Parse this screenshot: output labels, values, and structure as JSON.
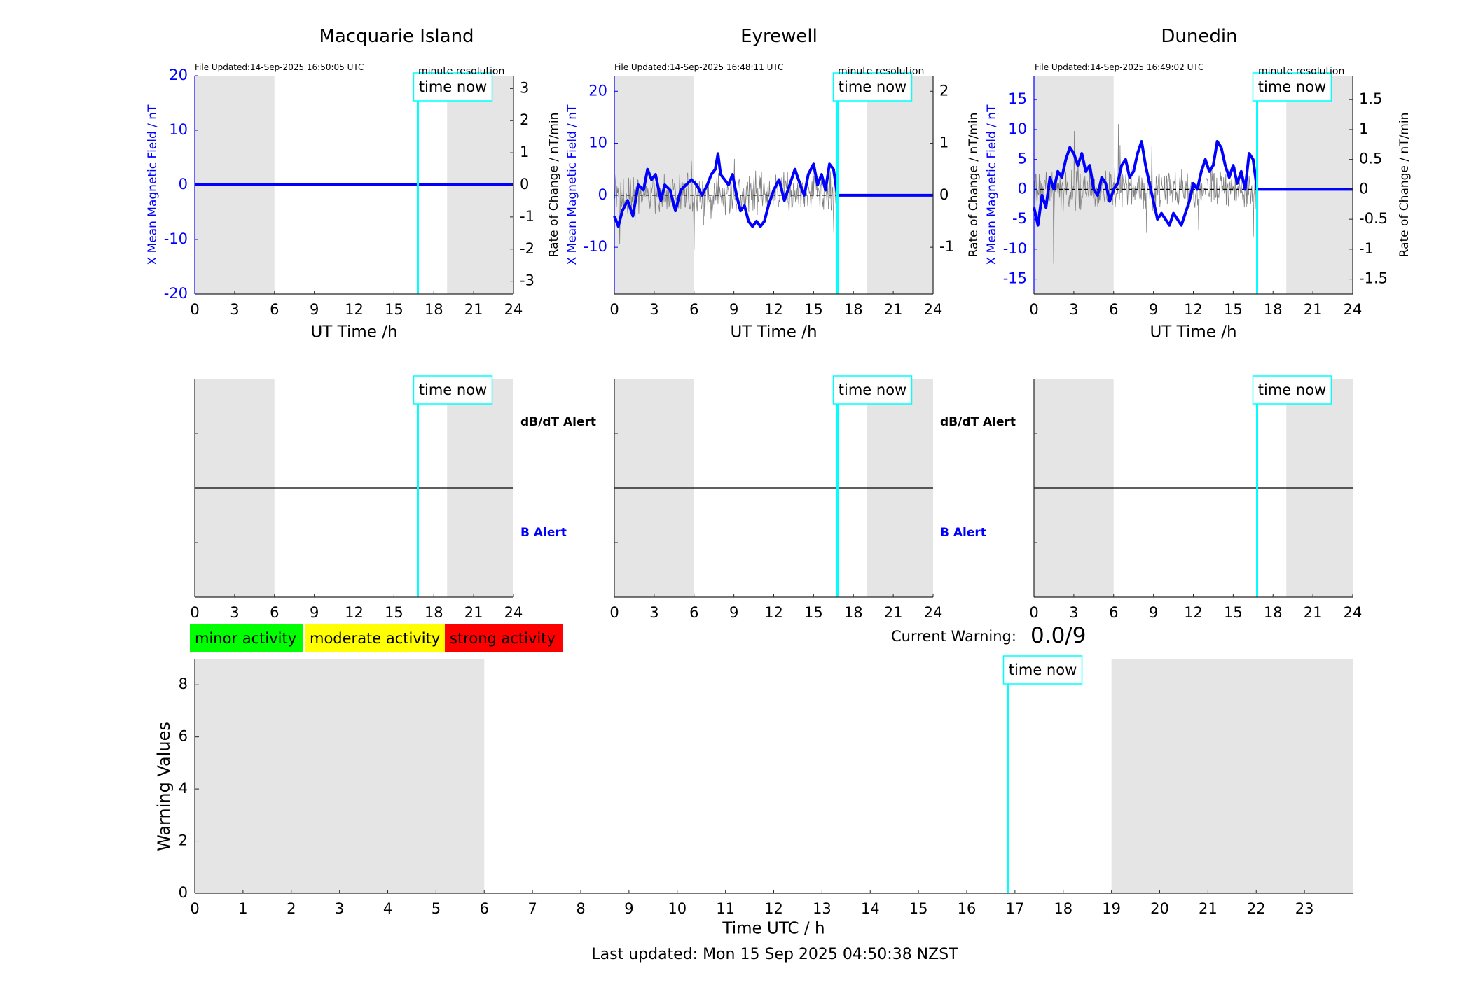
{
  "chart_data": [
    {
      "type": "line",
      "title": "Macquarie Island",
      "file_updated": "File Updated:14-Sep-2025 16:50:05 UTC",
      "resolution_label": "minute resolution",
      "xlabel": "UT Time /h",
      "ylabel_left": "X Mean Magnetic Field / nT",
      "ylabel_right": "Rate of Change / nT/min",
      "xlim": [
        0,
        24
      ],
      "ylim_left": [
        -20,
        20
      ],
      "ylim_right": [
        -3.4,
        3.4
      ],
      "xticks": [
        0,
        3,
        6,
        9,
        12,
        15,
        18,
        21,
        24
      ],
      "yticks_left": [
        -20,
        -10,
        0,
        10,
        20
      ],
      "yticks_right": [
        -3,
        -2,
        -1,
        0,
        1,
        2,
        3
      ],
      "shaded_ranges": [
        [
          0,
          6
        ],
        [
          19,
          24
        ]
      ],
      "time_now": 16.8,
      "time_now_label": "time now",
      "series": [
        {
          "name": "X Mean Magnetic Field",
          "axis": "left",
          "color": "#0000ff",
          "x": [
            0,
            24
          ],
          "y": [
            0,
            0
          ]
        }
      ]
    },
    {
      "type": "line",
      "title": "Eyrewell",
      "file_updated": "File Updated:14-Sep-2025 16:48:11 UTC",
      "resolution_label": "minute resolution",
      "xlabel": "UT Time /h",
      "ylabel_left": "X Mean Magnetic Field / nT",
      "ylabel_right": "Rate of Change / nT/min",
      "xlim": [
        0,
        24
      ],
      "ylim_left": [
        -19,
        23
      ],
      "ylim_right": [
        -1.9,
        2.3
      ],
      "xticks": [
        0,
        3,
        6,
        9,
        12,
        15,
        18,
        21,
        24
      ],
      "yticks_left": [
        -10,
        0,
        10,
        20
      ],
      "yticks_right": [
        -1,
        0,
        1,
        2
      ],
      "shaded_ranges": [
        [
          0,
          6
        ],
        [
          19,
          24
        ]
      ],
      "time_now": 16.8,
      "time_now_label": "time now",
      "series": [
        {
          "name": "X Mean Magnetic Field",
          "axis": "left",
          "color": "#0000ff",
          "x": [
            0,
            0.3,
            0.6,
            1,
            1.4,
            1.8,
            2.2,
            2.5,
            2.8,
            3.1,
            3.5,
            3.8,
            4.2,
            4.6,
            5,
            5.4,
            5.8,
            6.2,
            6.6,
            7,
            7.3,
            7.6,
            7.8,
            8,
            8.3,
            8.6,
            8.9,
            9.2,
            9.5,
            9.8,
            10.1,
            10.4,
            10.7,
            11,
            11.3,
            11.6,
            12,
            12.4,
            12.8,
            13.2,
            13.6,
            14,
            14.3,
            14.6,
            15,
            15.3,
            15.6,
            15.9,
            16.2,
            16.5,
            16.8,
            24
          ],
          "y": [
            -4,
            -6,
            -3,
            -1,
            -4,
            2,
            1,
            5,
            3,
            4,
            -1,
            2,
            1,
            -3,
            1,
            2,
            3,
            2,
            0,
            2,
            4,
            5,
            8,
            4,
            3,
            2,
            4,
            0,
            -3,
            -2,
            -5,
            -6,
            -5,
            -6,
            -5,
            -2,
            1,
            3,
            -1,
            2,
            5,
            2,
            0,
            4,
            6,
            2,
            4,
            1,
            6,
            5,
            0,
            0
          ]
        },
        {
          "name": "Rate of Change",
          "axis": "right",
          "color": "#808080",
          "x": [
            0,
            16.8
          ],
          "y": [
            0,
            0
          ]
        }
      ]
    },
    {
      "type": "line",
      "title": "Dunedin",
      "file_updated": "File Updated:14-Sep-2025 16:49:02 UTC",
      "resolution_label": "minute resolution",
      "xlabel": "UT Time /h",
      "ylabel_left": "X Mean Magnetic Field / nT",
      "ylabel_right": "Rate of Change / nT/min",
      "xlim": [
        0,
        24
      ],
      "ylim_left": [
        -17.5,
        19
      ],
      "ylim_right": [
        -1.75,
        1.9
      ],
      "xticks": [
        0,
        3,
        6,
        9,
        12,
        15,
        18,
        21,
        24
      ],
      "yticks_left": [
        -15,
        -10,
        -5,
        0,
        5,
        10,
        15
      ],
      "yticks_right": [
        -1.5,
        -1,
        -0.5,
        0,
        0.5,
        1,
        1.5
      ],
      "shaded_ranges": [
        [
          0,
          6
        ],
        [
          19,
          24
        ]
      ],
      "time_now": 16.8,
      "time_now_label": "time now",
      "series": [
        {
          "name": "X Mean Magnetic Field",
          "axis": "left",
          "color": "#0000ff",
          "x": [
            0,
            0.3,
            0.6,
            0.9,
            1.2,
            1.5,
            1.8,
            2.1,
            2.4,
            2.7,
            3,
            3.3,
            3.6,
            3.9,
            4.2,
            4.5,
            4.8,
            5.1,
            5.4,
            5.7,
            6,
            6.3,
            6.6,
            6.9,
            7.2,
            7.5,
            7.8,
            8.1,
            8.4,
            8.7,
            9,
            9.3,
            9.6,
            9.9,
            10.2,
            10.5,
            10.8,
            11.1,
            11.4,
            11.7,
            12,
            12.3,
            12.6,
            12.9,
            13.2,
            13.5,
            13.8,
            14.1,
            14.4,
            14.7,
            15,
            15.3,
            15.6,
            15.9,
            16.2,
            16.5,
            16.8,
            24
          ],
          "y": [
            -3,
            -6,
            -1,
            -3,
            2,
            0,
            3,
            2,
            5,
            7,
            6,
            4,
            6,
            3,
            4,
            0,
            -1,
            2,
            1,
            -2,
            0,
            1,
            4,
            5,
            2,
            3,
            6,
            8,
            4,
            1,
            -2,
            -5,
            -4,
            -5,
            -6,
            -4,
            -5,
            -6,
            -4,
            -2,
            1,
            0,
            3,
            5,
            3,
            4,
            8,
            7,
            4,
            2,
            4,
            1,
            3,
            0,
            6,
            5,
            0,
            0
          ]
        },
        {
          "name": "Rate of Change",
          "axis": "right",
          "color": "#808080",
          "x": [
            0,
            16.8
          ],
          "y": [
            0,
            0
          ]
        }
      ]
    },
    {
      "type": "line",
      "title": "",
      "xlim": [
        0,
        24
      ],
      "xticks": [
        0,
        3,
        6,
        9,
        12,
        15,
        18,
        21,
        24
      ],
      "label_top": "dB/dT Alert",
      "label_bottom": "B Alert",
      "label_top_color": "#000000",
      "label_bottom_color": "#0000ff",
      "shaded_ranges": [
        [
          0,
          6
        ],
        [
          19,
          24
        ]
      ],
      "time_now": 16.8,
      "time_now_label": "time now",
      "station": "Macquarie Island"
    },
    {
      "type": "line",
      "title": "",
      "xlim": [
        0,
        24
      ],
      "xticks": [
        0,
        3,
        6,
        9,
        12,
        15,
        18,
        21,
        24
      ],
      "label_top": "dB/dT Alert",
      "label_bottom": "B Alert",
      "label_top_color": "#000000",
      "label_bottom_color": "#0000ff",
      "shaded_ranges": [
        [
          0,
          6
        ],
        [
          19,
          24
        ]
      ],
      "time_now": 16.8,
      "time_now_label": "time now",
      "station": "Eyrewell"
    },
    {
      "type": "line",
      "title": "",
      "xlim": [
        0,
        24
      ],
      "xticks": [
        0,
        3,
        6,
        9,
        12,
        15,
        18,
        21,
        24
      ],
      "label_top": "",
      "label_bottom": "",
      "shaded_ranges": [
        [
          0,
          6
        ],
        [
          19,
          24
        ]
      ],
      "time_now": 16.8,
      "time_now_label": "time now",
      "station": "Dunedin"
    },
    {
      "type": "line",
      "title": "",
      "xlabel": "Time UTC / h",
      "ylabel": "Warning Values",
      "xlim": [
        0,
        24
      ],
      "ylim": [
        0,
        9
      ],
      "xticks": [
        0,
        1,
        2,
        3,
        4,
        5,
        6,
        7,
        8,
        9,
        10,
        11,
        12,
        13,
        14,
        15,
        16,
        17,
        18,
        19,
        20,
        21,
        22,
        23
      ],
      "yticks": [
        0,
        2,
        4,
        6,
        8
      ],
      "shaded_ranges": [
        [
          0,
          6
        ],
        [
          19,
          24
        ]
      ],
      "time_now": 16.85,
      "time_now_label": "time now",
      "series": []
    }
  ],
  "legend": [
    {
      "label": "minor activity",
      "color": "#00ff00"
    },
    {
      "label": "moderate activity",
      "color": "#ffff00"
    },
    {
      "label": "strong activity",
      "color": "#ff0000"
    }
  ],
  "current_warning": {
    "label": "Current Warning:",
    "value": "0.0/9"
  },
  "footer": "Last updated: Mon 15 Sep 2025 04:50:38 NZST",
  "colors": {
    "shade": "#e5e5e5",
    "time_now": "#00ffff",
    "field": "#0000ff",
    "rate": "#808080"
  }
}
